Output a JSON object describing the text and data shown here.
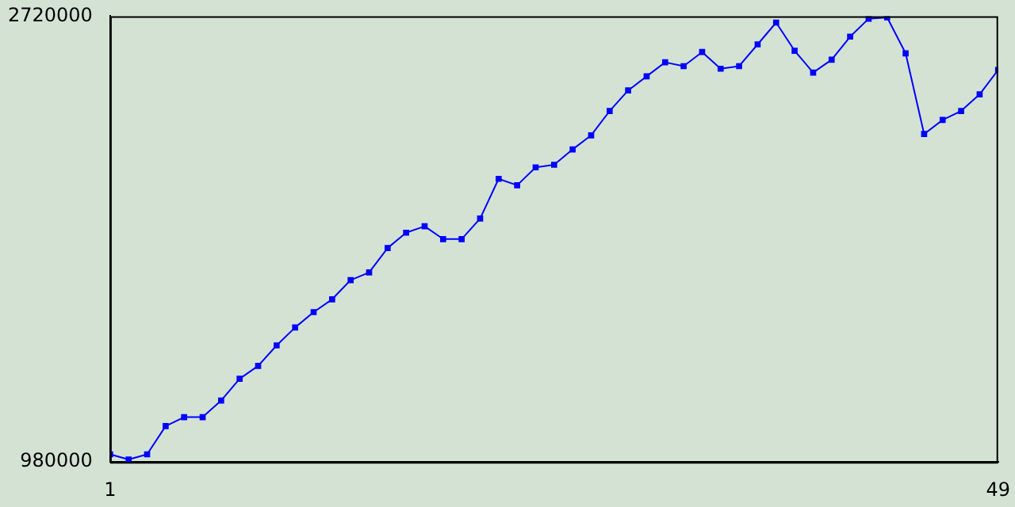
{
  "chart_data": {
    "type": "line",
    "x": [
      1,
      2,
      3,
      4,
      5,
      6,
      7,
      8,
      9,
      10,
      11,
      12,
      13,
      14,
      15,
      16,
      17,
      18,
      19,
      20,
      21,
      22,
      23,
      24,
      25,
      26,
      27,
      28,
      29,
      30,
      31,
      32,
      33,
      34,
      35,
      36,
      37,
      38,
      39,
      40,
      41,
      42,
      43,
      44,
      45,
      46,
      47,
      48,
      49
    ],
    "series": [
      {
        "color": "#0000ff",
        "values": [
          1010000,
          990000,
          1010000,
          1120000,
          1155000,
          1155000,
          1220000,
          1305000,
          1355000,
          1435000,
          1505000,
          1565000,
          1615000,
          1690000,
          1720000,
          1815000,
          1875000,
          1900000,
          1850000,
          1850000,
          1930000,
          2085000,
          2060000,
          2130000,
          2140000,
          2200000,
          2255000,
          2350000,
          2430000,
          2485000,
          2540000,
          2525000,
          2580000,
          2515000,
          2525000,
          2610000,
          2695000,
          2585000,
          2500000,
          2550000,
          2640000,
          2710000,
          2715000,
          2575000,
          2260000,
          2315000,
          2350000,
          2415000,
          2510000
        ]
      }
    ],
    "xlim": [
      1,
      49
    ],
    "xticks": [
      1,
      49
    ],
    "ylim": [
      980000,
      2720000
    ],
    "yticks": [
      980000,
      2720000
    ],
    "marker": "square"
  }
}
